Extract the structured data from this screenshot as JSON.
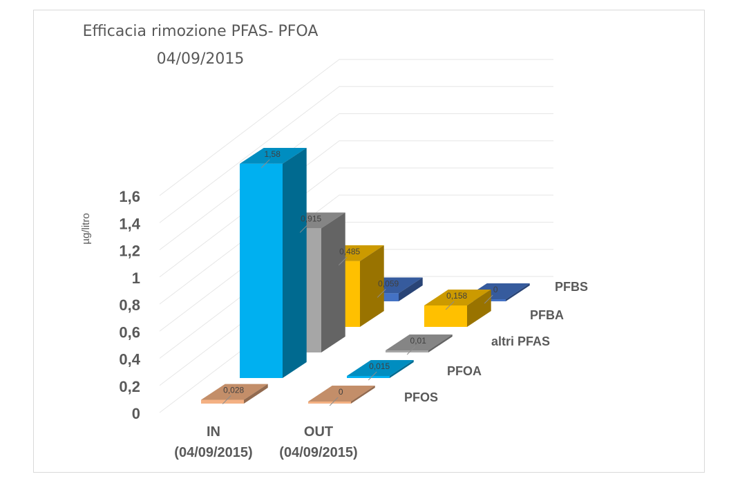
{
  "chart_data": {
    "type": "bar",
    "subtype": "3d-column",
    "title": "Efficacia rimozione PFAS- PFOA",
    "subtitle": "04/09/2015",
    "ylabel": "µg/litro",
    "xlabel": "",
    "ylim": [
      0,
      1.6
    ],
    "yticks": [
      "0",
      "0,2",
      "0,4",
      "0,6",
      "0,8",
      "1",
      "1,2",
      "1,4",
      "1,6"
    ],
    "grid": true,
    "categories": [
      "IN\n(04/09/2015)",
      "OUT\n(04/09/2015)"
    ],
    "category_lines": [
      [
        "IN",
        "(04/09/2015)"
      ],
      [
        "OUT",
        "(04/09/2015)"
      ]
    ],
    "series": [
      {
        "name": "PFOS",
        "values": [
          0.028,
          0
        ],
        "labels": [
          "0,028",
          "0"
        ],
        "color": "#F4B183"
      },
      {
        "name": "PFOA",
        "values": [
          1.58,
          0.015
        ],
        "labels": [
          "1,58",
          "0,015"
        ],
        "color": "#00B0F0"
      },
      {
        "name": "altri PFAS",
        "values": [
          0.915,
          0.01
        ],
        "labels": [
          "0,915",
          "0,01"
        ],
        "color": "#A6A6A6"
      },
      {
        "name": "PFBA",
        "values": [
          0.485,
          0.158
        ],
        "labels": [
          "0,485",
          "0,158"
        ],
        "color": "#FFC000"
      },
      {
        "name": "PFBS",
        "values": [
          0.059,
          0
        ],
        "labels": [
          "0,059",
          "0"
        ],
        "color": "#4472C4"
      }
    ]
  }
}
